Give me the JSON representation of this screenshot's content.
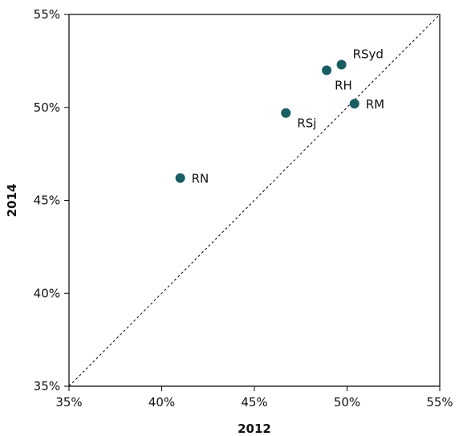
{
  "chart_data": {
    "type": "scatter",
    "title": "",
    "xlabel": "2012",
    "ylabel": "2014",
    "xlim": [
      0.35,
      0.55
    ],
    "ylim": [
      0.35,
      0.55
    ],
    "xticks": [
      0.35,
      0.4,
      0.45,
      0.5,
      0.55
    ],
    "yticks": [
      0.35,
      0.4,
      0.45,
      0.5,
      0.55
    ],
    "xtick_labels": [
      "35%",
      "40%",
      "45%",
      "50%",
      "55%"
    ],
    "ytick_labels": [
      "35%",
      "40%",
      "45%",
      "50%",
      "55%"
    ],
    "grid": false,
    "legend": "none",
    "diagonal_reference_line": true,
    "point_color": "#1a5e63",
    "points": [
      {
        "label": "RSyd",
        "x": 0.497,
        "y": 0.523
      },
      {
        "label": "RH",
        "x": 0.489,
        "y": 0.52
      },
      {
        "label": "RM",
        "x": 0.504,
        "y": 0.502
      },
      {
        "label": "RSj",
        "x": 0.467,
        "y": 0.497
      },
      {
        "label": "RN",
        "x": 0.41,
        "y": 0.462
      }
    ]
  }
}
